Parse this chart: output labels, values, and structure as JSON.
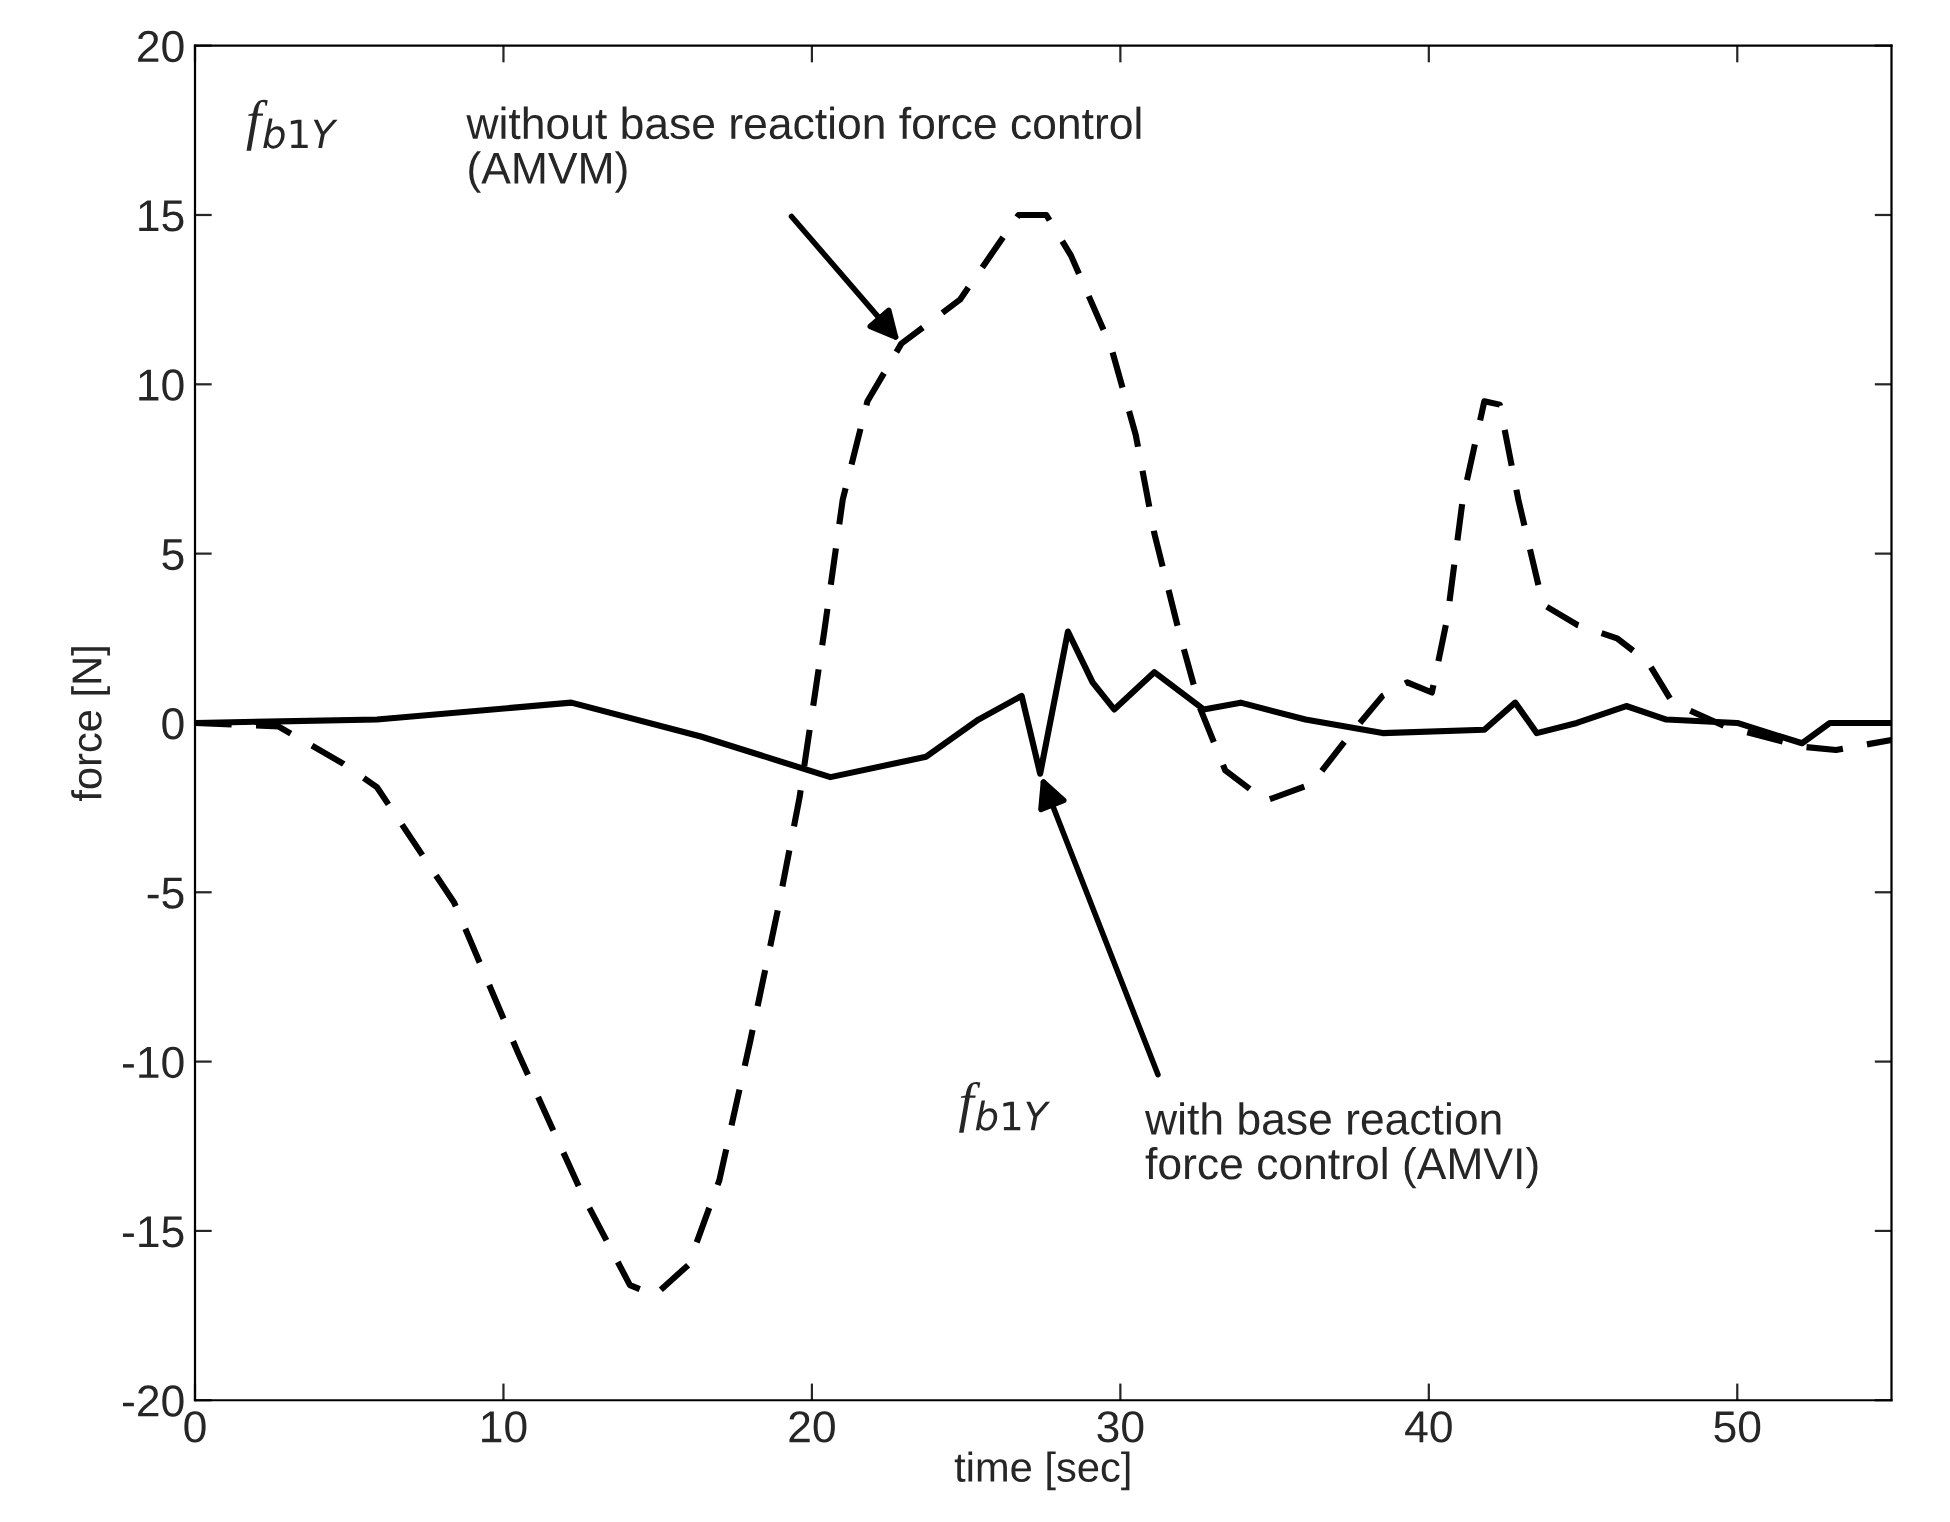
{
  "chart_data": {
    "type": "line",
    "xlabel": "time [sec]",
    "ylabel": "force [N]",
    "xlim": [
      0,
      55
    ],
    "ylim": [
      -20,
      20
    ],
    "xticks": [
      0,
      10,
      20,
      30,
      40,
      50
    ],
    "yticks": [
      -20,
      -15,
      -10,
      -5,
      0,
      5,
      10,
      15,
      20
    ],
    "grid": false,
    "legend": false,
    "marker": "none",
    "series": [
      {
        "color": "#000000",
        "line_style": "dashed",
        "x": [
          0,
          2.7,
          4.8,
          5.9,
          8.4,
          10.5,
          12.6,
          14.1,
          14.9,
          16.0,
          17.0,
          18.0,
          18.9,
          19.6,
          20.4,
          21.0,
          21.8,
          22.9,
          24.8,
          26.7,
          27.6,
          28.4,
          29.7,
          30.5,
          31.1,
          31.9,
          32.6,
          33.4,
          34.7,
          36.2,
          37.4,
          38.5,
          39.3,
          40.1,
          40.6,
          41.1,
          41.8,
          42.3,
          42.9,
          43.7,
          44.8,
          46.1,
          47.1,
          47.9,
          49.6,
          52.1,
          53.2,
          55
        ],
        "values": [
          0,
          -0.1,
          -1.2,
          -1.9,
          -5.3,
          -9.8,
          -14.0,
          -16.6,
          -16.9,
          -16.0,
          -13.5,
          -9.4,
          -5.5,
          -2.2,
          2.7,
          6.6,
          9.5,
          11.2,
          12.5,
          15.0,
          15.0,
          13.8,
          11.1,
          8.5,
          5.6,
          2.7,
          0.4,
          -1.4,
          -2.3,
          -1.8,
          -0.4,
          0.8,
          1.2,
          0.9,
          3.1,
          6.6,
          9.5,
          9.4,
          6.6,
          3.5,
          2.9,
          2.5,
          1.8,
          0.6,
          -0.1,
          -0.7,
          -0.8,
          -0.5
        ]
      },
      {
        "color": "#000000",
        "line_style": "solid",
        "x": [
          0,
          5.9,
          12.2,
          16.4,
          20.6,
          23.7,
          25.4,
          26.8,
          27.4,
          28.3,
          29.1,
          29.8,
          31.1,
          32.7,
          33.9,
          36.0,
          38.5,
          41.8,
          42.8,
          43.5,
          44.8,
          46.4,
          47.7,
          50.0,
          52.1,
          53.0,
          55
        ],
        "values": [
          0,
          0.1,
          0.6,
          -0.4,
          -1.6,
          -1.0,
          0.1,
          0.8,
          -1.5,
          2.7,
          1.2,
          0.4,
          1.5,
          0.4,
          0.6,
          0.1,
          -0.3,
          -0.2,
          0.6,
          -0.3,
          0,
          0.5,
          0.1,
          0,
          -0.6,
          0,
          0
        ]
      }
    ],
    "annotations": [
      "f$_{b1Y}$",
      {
        "text": "without base reaction force control\n(AMVM)",
        "x": 22.9,
        "y": 11.2
      },
      "f$_{b1Y}$",
      {
        "text": "with base reaction\nforce control (AMVI)",
        "x": 27.4,
        "y": -1.5
      }
    ]
  }
}
